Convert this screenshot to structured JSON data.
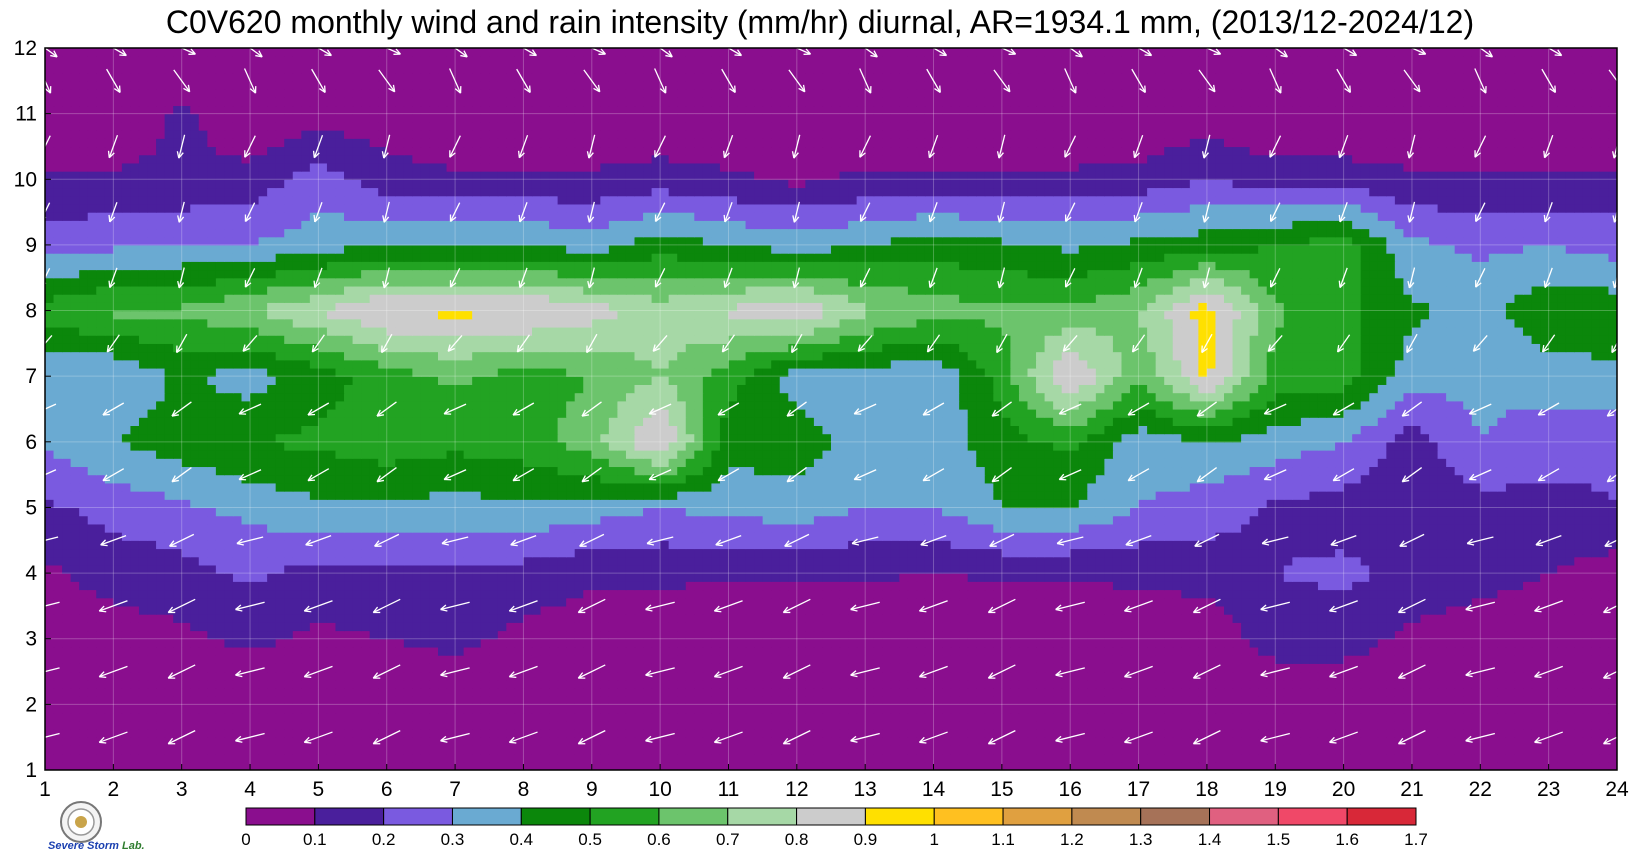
{
  "title": "C0V620 monthly wind and rain intensity (mm/hr) diurnal, AR=1934.1 mm, (2013/12-2024/12)",
  "logo": {
    "line1": "Severe",
    "line2": "Storm",
    "lab": "Lab."
  },
  "chart_data": {
    "type": "heatmap",
    "title": "C0V620 monthly wind and rain intensity (mm/hr) diurnal, AR=1934.1 mm, (2013/12-2024/12)",
    "xlabel": "",
    "ylabel": "",
    "x": [
      1,
      2,
      3,
      4,
      5,
      6,
      7,
      8,
      9,
      10,
      11,
      12,
      13,
      14,
      15,
      16,
      17,
      18,
      19,
      20,
      21,
      22,
      23,
      24
    ],
    "y": [
      1,
      2,
      3,
      4,
      5,
      6,
      7,
      8,
      9,
      10,
      11,
      12
    ],
    "xlim": [
      1,
      24
    ],
    "ylim": [
      1,
      12
    ],
    "x_ticks": [
      "1",
      "2",
      "3",
      "4",
      "5",
      "6",
      "7",
      "8",
      "9",
      "10",
      "11",
      "12",
      "13",
      "14",
      "15",
      "16",
      "17",
      "18",
      "19",
      "20",
      "21",
      "22",
      "23",
      "24"
    ],
    "y_ticks": [
      "1",
      "2",
      "3",
      "4",
      "5",
      "6",
      "7",
      "8",
      "9",
      "10",
      "11",
      "12"
    ],
    "grid": true,
    "z_rows": [
      [
        0.0,
        0.0,
        0.0,
        0.0,
        0.0,
        0.0,
        0.0,
        0.0,
        0.0,
        0.0,
        0.0,
        0.0,
        0.0,
        0.0,
        0.0,
        0.0,
        0.0,
        0.0,
        0.0,
        0.0,
        0.0,
        0.0,
        0.0,
        0.0
      ],
      [
        0.0,
        0.0,
        0.0,
        0.0,
        0.0,
        0.0,
        0.0,
        0.0,
        0.0,
        0.0,
        0.0,
        0.0,
        0.0,
        0.0,
        0.0,
        0.0,
        0.0,
        0.0,
        0.0,
        0.0,
        0.0,
        0.0,
        0.0,
        0.0
      ],
      [
        0.03,
        0.05,
        0.08,
        0.12,
        0.08,
        0.1,
        0.13,
        0.07,
        0.04,
        0.03,
        0.03,
        0.03,
        0.03,
        0.03,
        0.03,
        0.03,
        0.03,
        0.03,
        0.15,
        0.15,
        0.07,
        0.04,
        0.03,
        0.02
      ],
      [
        0.08,
        0.14,
        0.16,
        0.22,
        0.16,
        0.17,
        0.19,
        0.16,
        0.12,
        0.12,
        0.11,
        0.11,
        0.11,
        0.1,
        0.11,
        0.11,
        0.12,
        0.14,
        0.2,
        0.22,
        0.18,
        0.14,
        0.1,
        0.05
      ],
      [
        0.18,
        0.24,
        0.28,
        0.33,
        0.38,
        0.38,
        0.36,
        0.38,
        0.35,
        0.3,
        0.33,
        0.36,
        0.3,
        0.3,
        0.4,
        0.4,
        0.3,
        0.25,
        0.18,
        0.16,
        0.14,
        0.16,
        0.17,
        0.2
      ],
      [
        0.32,
        0.4,
        0.45,
        0.5,
        0.52,
        0.56,
        0.53,
        0.55,
        0.66,
        0.92,
        0.44,
        0.45,
        0.35,
        0.34,
        0.46,
        0.52,
        0.34,
        0.4,
        0.35,
        0.3,
        0.15,
        0.3,
        0.24,
        0.22
      ],
      [
        0.32,
        0.3,
        0.42,
        0.35,
        0.45,
        0.55,
        0.62,
        0.55,
        0.6,
        0.7,
        0.55,
        0.35,
        0.35,
        0.3,
        0.55,
        0.92,
        0.62,
        0.92,
        0.55,
        0.55,
        0.35,
        0.32,
        0.35,
        0.38
      ],
      [
        0.55,
        0.62,
        0.62,
        0.7,
        0.8,
        0.92,
        0.92,
        0.92,
        0.85,
        0.75,
        0.82,
        0.9,
        0.72,
        0.65,
        0.62,
        0.62,
        0.7,
        0.95,
        0.62,
        0.52,
        0.42,
        0.36,
        0.48,
        0.46
      ],
      [
        0.24,
        0.28,
        0.3,
        0.3,
        0.35,
        0.4,
        0.4,
        0.4,
        0.35,
        0.45,
        0.4,
        0.35,
        0.4,
        0.45,
        0.42,
        0.38,
        0.42,
        0.45,
        0.5,
        0.55,
        0.32,
        0.28,
        0.3,
        0.26
      ],
      [
        0.11,
        0.12,
        0.12,
        0.14,
        0.25,
        0.14,
        0.12,
        0.12,
        0.12,
        0.15,
        0.12,
        0.08,
        0.12,
        0.12,
        0.12,
        0.12,
        0.14,
        0.2,
        0.15,
        0.15,
        0.12,
        0.12,
        0.12,
        0.12
      ],
      [
        0.0,
        0.0,
        0.13,
        0.0,
        0.06,
        0.04,
        0.0,
        0.0,
        0.0,
        0.0,
        0.0,
        0.0,
        0.0,
        0.0,
        0.0,
        0.0,
        0.0,
        0.04,
        0.0,
        0.0,
        0.0,
        0.0,
        0.0,
        0.0
      ],
      [
        0.0,
        0.0,
        0.0,
        0.0,
        0.0,
        0.0,
        0.0,
        0.0,
        0.0,
        0.0,
        0.0,
        0.0,
        0.0,
        0.0,
        0.0,
        0.0,
        0.0,
        0.0,
        0.0,
        0.0,
        0.0,
        0.0,
        0.0,
        0.0
      ]
    ],
    "colorbar": {
      "levels": [
        "0",
        "0.1",
        "0.2",
        "0.3",
        "0.4",
        "0.5",
        "0.6",
        "0.7",
        "0.8",
        "0.9",
        "1",
        "1.1",
        "1.2",
        "1.3",
        "1.4",
        "1.5",
        "1.6",
        "1.7"
      ],
      "colors": [
        "#8a0e8e",
        "#4a1f9c",
        "#7a5ae0",
        "#6aaad2",
        "#0b870b",
        "#22a322",
        "#6cc46c",
        "#a6d8a6",
        "#cccccc",
        "#ffe000",
        "#ffc020",
        "#e0a040",
        "#c08a50",
        "#a67258",
        "#e06080",
        "#f04868",
        "#d82838"
      ]
    },
    "wind": {
      "description_note": "",
      "directions_deg_by_month": [
        200,
        200,
        200,
        200,
        210,
        210,
        235,
        250,
        250,
        250,
        300,
        330
      ],
      "speed_relative_by_month": [
        1.0,
        1.0,
        1.0,
        0.9,
        0.8,
        0.8,
        0.7,
        0.7,
        0.7,
        0.8,
        0.9,
        1.0
      ]
    }
  }
}
